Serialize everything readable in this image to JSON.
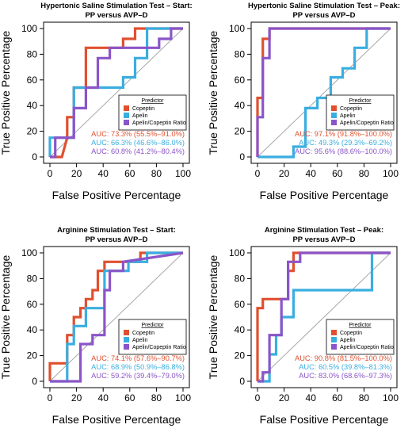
{
  "legend": {
    "title": "Predictor",
    "entries": [
      "Copeptin",
      "Apelin",
      "Apelin/Copeptin Ratio"
    ]
  },
  "axes": {
    "xlabel": "False Positive Percentage",
    "ylabel": "True Positive Percentage",
    "ticks": [
      0,
      20,
      40,
      60,
      80,
      100
    ]
  },
  "colors": {
    "copeptin": "#E0502F",
    "apelin": "#3AAEE0",
    "ratio": "#8B55C8",
    "diagonal": "#A8A8A8"
  },
  "chart_data": [
    {
      "type": "line",
      "title": "Hypertonic Saline Stimulation Test – Start:",
      "subtitle": "PP versus AVP–D",
      "xlim": [
        0,
        100
      ],
      "ylim": [
        0,
        100
      ],
      "auc": [
        "AUC: 73.3% (55.5%–91.0%)",
        "AUC: 66.3% (46.6%–86.0%)",
        "AUC: 60.8% (41.2%–80.4%)"
      ],
      "series": [
        {
          "name": "Copeptin",
          "x": [
            0,
            9,
            13,
            13,
            18,
            18,
            27,
            27,
            36,
            36,
            55,
            55,
            64,
            64,
            100
          ],
          "y": [
            0,
            0,
            15,
            31,
            31,
            54,
            54,
            85,
            85,
            85,
            85,
            92,
            92,
            100,
            100
          ]
        },
        {
          "name": "Apelin",
          "x": [
            0,
            0,
            18,
            18,
            55,
            55,
            64,
            64,
            73,
            73,
            100
          ],
          "y": [
            0,
            15,
            15,
            54,
            54,
            62,
            62,
            77,
            77,
            100,
            100
          ]
        },
        {
          "name": "Apelin/Copeptin Ratio",
          "x": [
            0,
            4,
            4,
            18,
            18,
            27,
            27,
            36,
            36,
            45,
            45,
            82,
            82,
            91,
            91,
            100
          ],
          "y": [
            0,
            0,
            15,
            15,
            38,
            38,
            54,
            54,
            77,
            77,
            85,
            85,
            92,
            92,
            100,
            100
          ]
        }
      ]
    },
    {
      "type": "line",
      "title": "Hypertonic Saline Stimulation Test – Peak:",
      "subtitle": "PP versus AVP–D",
      "xlim": [
        0,
        100
      ],
      "ylim": [
        0,
        100
      ],
      "auc": [
        "AUC: 97.1% (91.8%–100.0%)",
        "AUC: 49.3% (29.3%–69.2%)",
        "AUC: 95.6% (88.6%–100.0%)"
      ],
      "series": [
        {
          "name": "Copeptin",
          "x": [
            0,
            0,
            4,
            4,
            9,
            9,
            100
          ],
          "y": [
            0,
            46,
            46,
            92,
            92,
            100,
            100
          ]
        },
        {
          "name": "Apelin",
          "x": [
            0,
            27,
            27,
            36,
            36,
            45,
            45,
            55,
            55,
            64,
            64,
            73,
            73,
            82,
            82,
            100
          ],
          "y": [
            0,
            0,
            8,
            8,
            38,
            38,
            46,
            46,
            62,
            62,
            69,
            69,
            85,
            85,
            100,
            100
          ]
        },
        {
          "name": "Apelin/Copeptin Ratio",
          "x": [
            0,
            0,
            4,
            4,
            9,
            9,
            100
          ],
          "y": [
            0,
            31,
            31,
            77,
            77,
            100,
            100
          ]
        }
      ]
    },
    {
      "type": "line",
      "title": "Arginine Stimulation Test – Start:",
      "subtitle": "PP versus AVP–D",
      "xlim": [
        0,
        100
      ],
      "ylim": [
        0,
        100
      ],
      "auc": [
        "AUC: 74.1% (57.6%–90.7%)",
        "AUC: 68.9% (50.9%–86.8%)",
        "AUC: 59.2% (39.4%–79.0%)"
      ],
      "series": [
        {
          "name": "Copeptin",
          "x": [
            0,
            0,
            13,
            13,
            18,
            18,
            23,
            23,
            27,
            27,
            32,
            32,
            36,
            36,
            41,
            41,
            68,
            68,
            100
          ],
          "y": [
            0,
            14,
            14,
            36,
            36,
            50,
            50,
            57,
            57,
            64,
            64,
            71,
            71,
            86,
            86,
            93,
            93,
            100,
            100
          ]
        },
        {
          "name": "Apelin",
          "x": [
            0,
            13,
            13,
            18,
            18,
            27,
            27,
            41,
            41,
            59,
            59,
            73,
            73,
            77,
            77,
            100
          ],
          "y": [
            0,
            0,
            29,
            29,
            43,
            43,
            57,
            57,
            86,
            86,
            93,
            93,
            100,
            100,
            100,
            100
          ]
        },
        {
          "name": "Apelin/Copeptin Ratio",
          "x": [
            0,
            23,
            23,
            32,
            32,
            41,
            41,
            45,
            45,
            55,
            55,
            100
          ],
          "y": [
            0,
            0,
            29,
            29,
            36,
            36,
            71,
            71,
            86,
            86,
            93,
            100
          ]
        }
      ]
    },
    {
      "type": "line",
      "title": "Arginine Stimulation Test – Peak:",
      "subtitle": "PP versus AVP–D",
      "xlim": [
        0,
        100
      ],
      "ylim": [
        0,
        100
      ],
      "auc": [
        "AUC: 90.8% (81.5%–100.0%)",
        "AUC: 60.5% (39.8%–81.3%)",
        "AUC: 83.0% (68.6%–97.3%)"
      ],
      "series": [
        {
          "name": "Copeptin",
          "x": [
            0,
            0,
            4,
            4,
            14,
            14,
            23,
            23,
            27,
            27,
            32,
            32,
            100
          ],
          "y": [
            0,
            57,
            57,
            64,
            64,
            64,
            64,
            86,
            86,
            100,
            100,
            100,
            100
          ]
        },
        {
          "name": "Apelin",
          "x": [
            0,
            9,
            9,
            14,
            14,
            18,
            18,
            27,
            27,
            86,
            86,
            100
          ],
          "y": [
            0,
            0,
            21,
            21,
            36,
            36,
            50,
            50,
            71,
            71,
            100,
            100
          ]
        },
        {
          "name": "Apelin/Copeptin Ratio",
          "x": [
            0,
            4,
            4,
            9,
            9,
            18,
            18,
            23,
            23,
            32,
            32,
            100
          ],
          "y": [
            0,
            0,
            7,
            7,
            36,
            36,
            64,
            64,
            93,
            93,
            100,
            100
          ]
        }
      ]
    }
  ]
}
